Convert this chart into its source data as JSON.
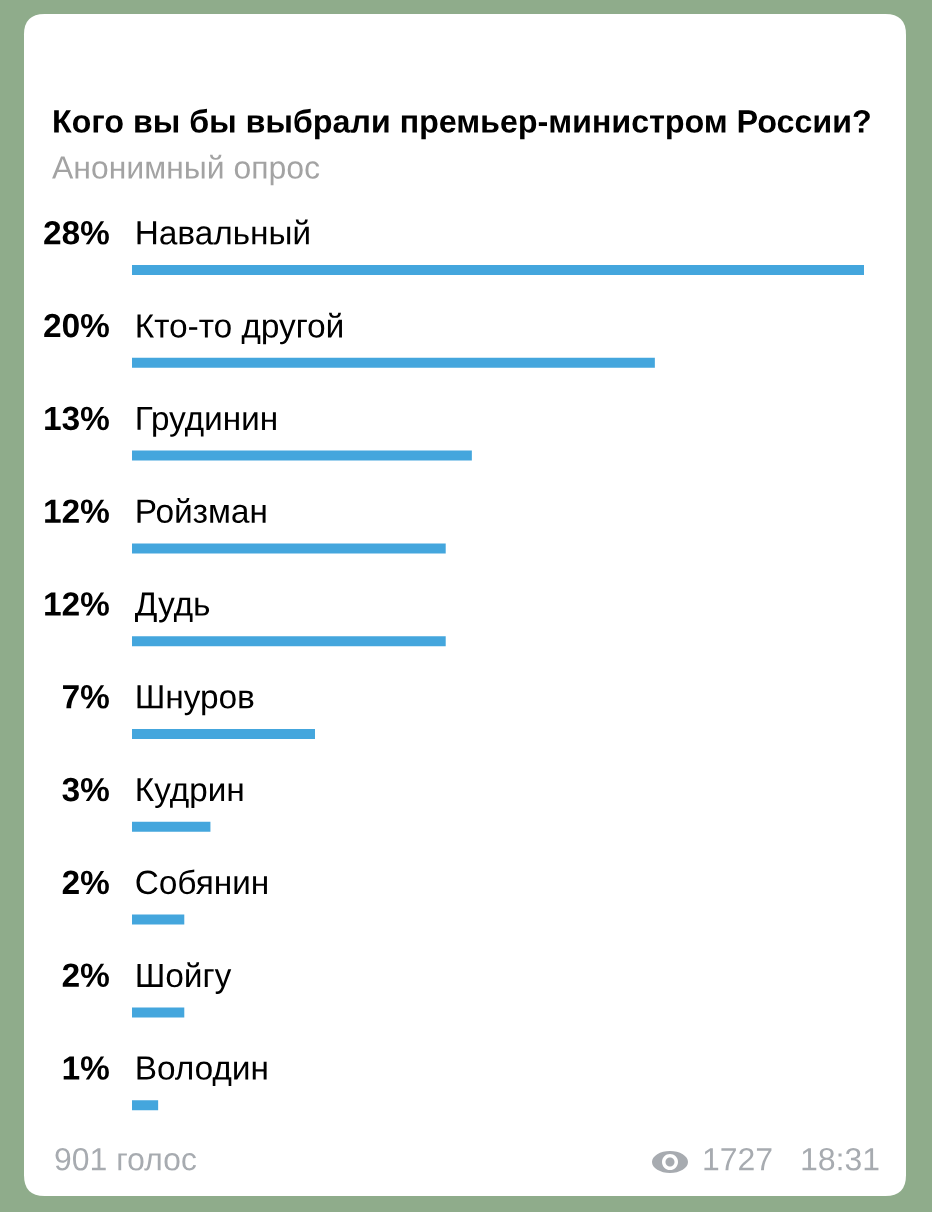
{
  "chart_data": {
    "type": "bar",
    "orientation": "horizontal",
    "title": "Кого вы бы выбрали премьер-министром России?",
    "subtitle": "Анонимный опрос",
    "categories": [
      "Навальный",
      "Кто-то другой",
      "Грудинин",
      "Ройзман",
      "Дудь",
      "Шнуров",
      "Кудрин",
      "Собянин",
      "Шойгу",
      "Володин"
    ],
    "values": [
      28,
      20,
      13,
      12,
      12,
      7,
      3,
      2,
      2,
      1
    ],
    "value_labels": [
      "28%",
      "20%",
      "13%",
      "12%",
      "12%",
      "7%",
      "3%",
      "2%",
      "2%",
      "1%"
    ],
    "color": "#44a6dd",
    "annotations": [
      "901 голос",
      "1727",
      "18:31"
    ]
  }
}
